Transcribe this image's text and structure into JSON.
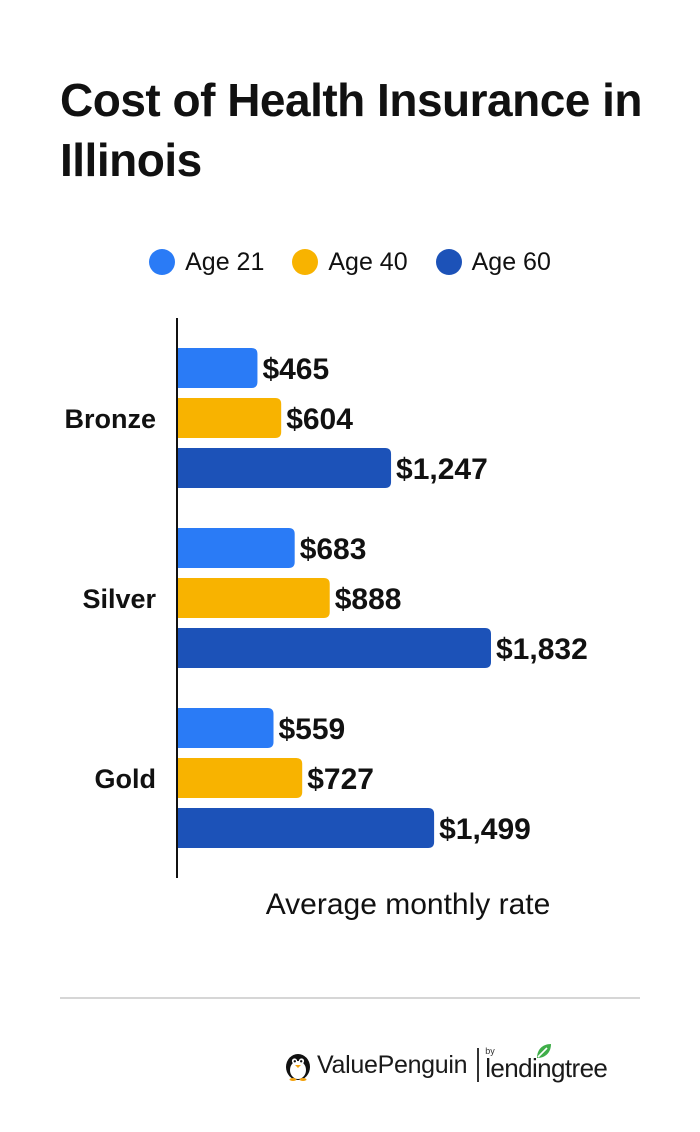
{
  "chart_data": {
    "type": "bar",
    "orientation": "horizontal",
    "title": "Cost of Health Insurance in Illinois",
    "xlabel": "Average monthly rate",
    "ylabel": "",
    "categories": [
      "Bronze",
      "Silver",
      "Gold"
    ],
    "series": [
      {
        "name": "Age 21",
        "color": "#2a7bf6",
        "values": [
          465,
          683,
          559
        ],
        "labels": [
          "$465",
          "$683",
          "$559"
        ]
      },
      {
        "name": "Age 40",
        "color": "#f8b300",
        "values": [
          604,
          888,
          727
        ],
        "labels": [
          "$604",
          "$888",
          "$727"
        ]
      },
      {
        "name": "Age 60",
        "color": "#1c52b8",
        "values": [
          1247,
          1832,
          1499
        ],
        "labels": [
          "$1,247",
          "$1,832",
          "$1,499"
        ]
      }
    ],
    "xlim": [
      0,
      1832
    ],
    "grid": false,
    "legend_position": "top"
  },
  "brand": {
    "valuepenguin": "ValuePenguin",
    "by": "by",
    "lendingtree": "lendingtree",
    "penguin_icon": "penguin-icon",
    "leaf_icon": "leaf-icon"
  }
}
